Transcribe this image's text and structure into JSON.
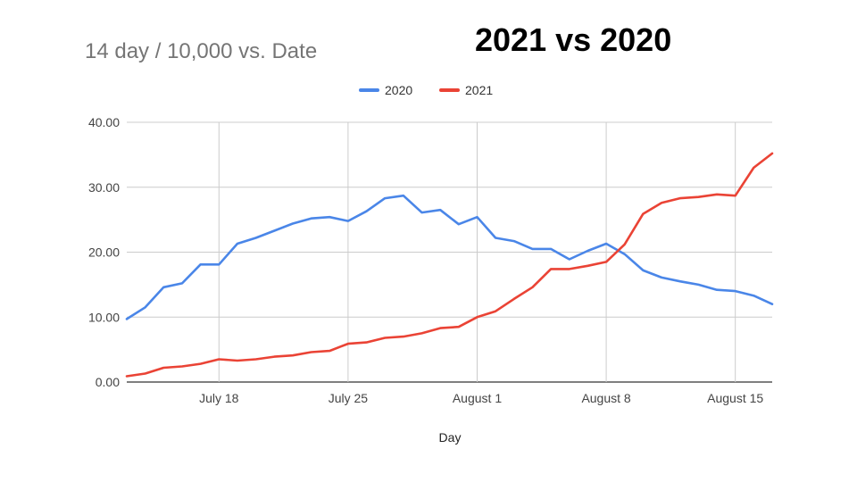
{
  "slide_title": "2021 vs 2020",
  "chart_data": {
    "type": "line",
    "title": "14 day / 10,000 vs. Date",
    "xlabel": "Day",
    "ylabel": "",
    "ylim": [
      0,
      40
    ],
    "yticks": [
      "0.00",
      "10.00",
      "20.00",
      "30.00",
      "40.00"
    ],
    "xlim": [
      "July 13",
      "August 17"
    ],
    "x_tick_labels": [
      {
        "label": "July 18",
        "day": 5
      },
      {
        "label": "July 25",
        "day": 12
      },
      {
        "label": "August 1",
        "day": 19
      },
      {
        "label": "August 8",
        "day": 26
      },
      {
        "label": "August 15",
        "day": 33
      }
    ],
    "x": [
      "Jul 13",
      "Jul 14",
      "Jul 15",
      "Jul 16",
      "Jul 17",
      "Jul 18",
      "Jul 19",
      "Jul 20",
      "Jul 21",
      "Jul 22",
      "Jul 23",
      "Jul 24",
      "Jul 25",
      "Jul 26",
      "Jul 27",
      "Jul 28",
      "Jul 29",
      "Jul 30",
      "Jul 31",
      "Aug 1",
      "Aug 2",
      "Aug 3",
      "Aug 4",
      "Aug 5",
      "Aug 6",
      "Aug 7",
      "Aug 8",
      "Aug 9",
      "Aug 10",
      "Aug 11",
      "Aug 12",
      "Aug 13",
      "Aug 14",
      "Aug 15",
      "Aug 16",
      "Aug 17"
    ],
    "grid": true,
    "legend_position": "top",
    "series": [
      {
        "name": "2020",
        "color": "#4a86e8",
        "values": [
          9.7,
          11.5,
          14.6,
          15.2,
          18.1,
          18.1,
          21.3,
          22.2,
          23.3,
          24.4,
          25.2,
          25.4,
          24.8,
          26.3,
          28.3,
          28.7,
          26.1,
          26.5,
          24.3,
          25.4,
          22.2,
          21.7,
          20.5,
          20.5,
          18.9,
          20.2,
          21.3,
          19.7,
          17.2,
          16.1,
          15.5,
          15.0,
          14.2,
          14.0,
          13.3,
          12.0
        ]
      },
      {
        "name": "2021",
        "color": "#ea4335",
        "values": [
          0.9,
          1.3,
          2.2,
          2.4,
          2.8,
          3.5,
          3.3,
          3.5,
          3.9,
          4.1,
          4.6,
          4.8,
          5.9,
          6.1,
          6.8,
          7.0,
          7.5,
          8.3,
          8.5,
          10.0,
          10.9,
          12.8,
          14.6,
          17.4,
          17.4,
          17.9,
          18.5,
          21.2,
          25.9,
          27.6,
          28.3,
          28.5,
          28.9,
          28.7,
          33.0,
          35.2
        ]
      }
    ]
  }
}
